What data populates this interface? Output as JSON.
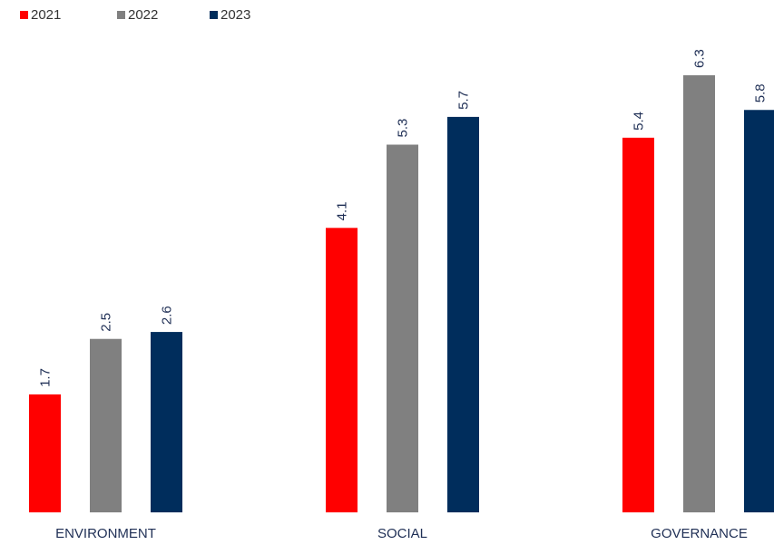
{
  "chart_data": {
    "type": "bar",
    "categories": [
      "ENVIRONMENT",
      "SOCIAL",
      "GOVERNANCE"
    ],
    "series": [
      {
        "name": "2021",
        "color": "#ff0000",
        "values": [
          1.7,
          4.1,
          5.4
        ]
      },
      {
        "name": "2022",
        "color": "#808080",
        "values": [
          2.5,
          5.3,
          6.3
        ]
      },
      {
        "name": "2023",
        "color": "#002d5c",
        "values": [
          2.6,
          5.7,
          5.8
        ]
      }
    ],
    "data_labels": true,
    "data_label_orientation": "vertical",
    "legend_position": "top-left",
    "grid": false,
    "ylim": [
      0,
      6.3
    ]
  }
}
